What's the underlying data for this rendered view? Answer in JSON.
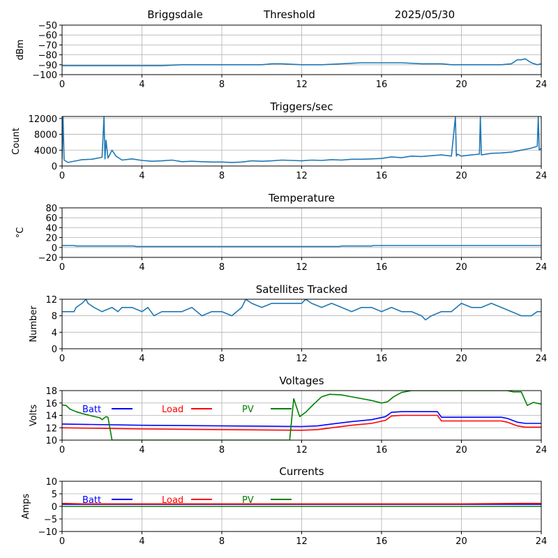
{
  "header": {
    "station": "Briggsdale",
    "mode": "Threshold",
    "date": "2025/05/30"
  },
  "chart_data": [
    {
      "id": "signal",
      "type": "line",
      "title": "",
      "xlabel": "",
      "ylabel": "dBm",
      "xlim": [
        0,
        24
      ],
      "ylim": [
        -100,
        -50
      ],
      "xticks": [
        0,
        4,
        8,
        12,
        16,
        20,
        24
      ],
      "yticks": [
        -100,
        -90,
        -80,
        -70,
        -60,
        -50
      ],
      "grid": true,
      "series": [
        {
          "color": "#1f77b4",
          "x": [
            0,
            1,
            2,
            3,
            4,
            5,
            6,
            7,
            8,
            9,
            10,
            10.5,
            11,
            12,
            13,
            14,
            15,
            16,
            17,
            18,
            19,
            19.5,
            20,
            21,
            22,
            22.5,
            22.8,
            23.0,
            23.2,
            23.5,
            23.8,
            24
          ],
          "y": [
            -91,
            -91,
            -91,
            -91,
            -91,
            -91,
            -90,
            -90,
            -90,
            -90,
            -90,
            -89,
            -89,
            -90,
            -90,
            -89,
            -88,
            -88,
            -88,
            -89,
            -89,
            -90,
            -90,
            -90,
            -90,
            -89,
            -85,
            -85,
            -84,
            -88,
            -90,
            -89
          ]
        }
      ]
    },
    {
      "id": "triggers",
      "type": "line",
      "title": "Triggers/sec",
      "xlabel": "",
      "ylabel": "Count",
      "xlim": [
        0,
        24
      ],
      "ylim": [
        0,
        12500
      ],
      "xticks": [
        0,
        4,
        8,
        12,
        16,
        20,
        24
      ],
      "yticks": [
        0,
        4000,
        8000,
        12000
      ],
      "grid": true,
      "series": [
        {
          "color": "#1f77b4",
          "x": [
            0,
            0.05,
            0.1,
            0.3,
            1,
            1.5,
            2,
            2.1,
            2.15,
            2.2,
            2.3,
            2.5,
            2.7,
            3,
            3.5,
            4,
            4.5,
            5,
            5.5,
            6,
            6.5,
            7,
            7.5,
            8,
            8.5,
            9,
            9.5,
            10,
            10.5,
            11,
            11.5,
            12,
            12.5,
            13,
            13.5,
            14,
            14.5,
            15,
            15.5,
            16,
            16.5,
            17,
            17.5,
            18,
            18.5,
            19,
            19.5,
            19.7,
            19.75,
            19.8,
            20,
            20.5,
            20.9,
            20.95,
            21,
            21.5,
            22,
            22.5,
            23,
            23.5,
            23.8,
            23.85,
            23.9,
            24
          ],
          "y": [
            1800,
            12400,
            1500,
            900,
            1600,
            1700,
            2200,
            12400,
            1800,
            6500,
            2000,
            4000,
            2500,
            1500,
            1800,
            1400,
            1200,
            1300,
            1500,
            1100,
            1200,
            1100,
            1000,
            1000,
            900,
            1000,
            1300,
            1200,
            1300,
            1500,
            1400,
            1300,
            1500,
            1400,
            1600,
            1500,
            1700,
            1700,
            1800,
            1900,
            2300,
            2100,
            2500,
            2400,
            2600,
            2800,
            2500,
            12400,
            2500,
            3000,
            2500,
            2800,
            3000,
            12400,
            2800,
            3200,
            3300,
            3500,
            4000,
            4500,
            5000,
            12400,
            4000,
            4500
          ]
        }
      ]
    },
    {
      "id": "temperature",
      "type": "line",
      "title": "Temperature",
      "xlabel": "",
      "ylabel": "°C",
      "xlim": [
        0,
        24
      ],
      "ylim": [
        -20,
        80
      ],
      "xticks": [
        0,
        4,
        8,
        12,
        16,
        20,
        24
      ],
      "yticks": [
        -20,
        0,
        20,
        40,
        60,
        80
      ],
      "grid": true,
      "series": [
        {
          "color": "#1f77b4",
          "x": [
            0,
            0.6,
            0.7,
            3.6,
            3.7,
            13.9,
            14.0,
            15.5,
            15.6,
            24
          ],
          "y": [
            4,
            4,
            3,
            3,
            2,
            2,
            3,
            3,
            4,
            4
          ]
        }
      ]
    },
    {
      "id": "satellites",
      "type": "line",
      "title": "Satellites Tracked",
      "xlabel": "",
      "ylabel": "Number",
      "xlim": [
        0,
        24
      ],
      "ylim": [
        0,
        12
      ],
      "xticks": [
        0,
        4,
        8,
        12,
        16,
        20,
        24
      ],
      "yticks": [
        0,
        4,
        8,
        12
      ],
      "grid": true,
      "series": [
        {
          "color": "#1f77b4",
          "x": [
            0,
            0.6,
            0.7,
            1.0,
            1.2,
            1.3,
            1.6,
            2.0,
            2.5,
            2.8,
            3.0,
            3.5,
            4.0,
            4.3,
            4.6,
            5.0,
            5.5,
            6.0,
            6.5,
            7.0,
            7.5,
            8.0,
            8.5,
            9.0,
            9.2,
            9.5,
            10.0,
            10.5,
            11.0,
            11.5,
            12.0,
            12.2,
            12.5,
            13.0,
            13.5,
            14.0,
            14.5,
            15.0,
            15.5,
            16.0,
            16.5,
            17.0,
            17.5,
            18.0,
            18.2,
            18.5,
            19.0,
            19.5,
            20.0,
            20.5,
            21.0,
            21.5,
            22.0,
            22.5,
            23.0,
            23.5,
            23.8,
            24
          ],
          "y": [
            9,
            9,
            10,
            11,
            12,
            11,
            10,
            9,
            10,
            9,
            10,
            10,
            9,
            10,
            8,
            9,
            9,
            9,
            10,
            8,
            9,
            9,
            8,
            10,
            12,
            11,
            10,
            11,
            11,
            11,
            11,
            12,
            11,
            10,
            11,
            10,
            9,
            10,
            10,
            9,
            10,
            9,
            9,
            8,
            7,
            8,
            9,
            9,
            11,
            10,
            10,
            11,
            10,
            9,
            8,
            8,
            9,
            9
          ]
        }
      ]
    },
    {
      "id": "voltages",
      "type": "line",
      "title": "Voltages",
      "xlabel": "",
      "ylabel": "Volts",
      "xlim": [
        0,
        24
      ],
      "ylim": [
        10,
        18
      ],
      "xticks": [
        0,
        4,
        8,
        12,
        16,
        20,
        24
      ],
      "yticks": [
        10,
        12,
        14,
        16,
        18
      ],
      "grid": true,
      "legend": "top-left",
      "series": [
        {
          "name": "Batt",
          "color": "#0000ff",
          "x": [
            0,
            4,
            8,
            12,
            12.8,
            13.5,
            14.5,
            15.5,
            16.2,
            16.5,
            17,
            18,
            18.8,
            19.0,
            20,
            22.0,
            22.3,
            22.8,
            23.2,
            24
          ],
          "y": [
            12.6,
            12.4,
            12.3,
            12.2,
            12.3,
            12.6,
            13.0,
            13.3,
            13.8,
            14.5,
            14.6,
            14.6,
            14.6,
            13.7,
            13.7,
            13.7,
            13.5,
            12.9,
            12.7,
            12.7
          ]
        },
        {
          "name": "Load",
          "color": "#ff0000",
          "x": [
            0,
            4,
            8,
            12,
            12.8,
            13.5,
            14.5,
            15.5,
            16.2,
            16.5,
            17,
            18,
            18.8,
            19.0,
            20,
            22.0,
            22.3,
            22.8,
            23.2,
            24
          ],
          "y": [
            12.0,
            11.8,
            11.7,
            11.6,
            11.7,
            12.0,
            12.4,
            12.7,
            13.2,
            13.9,
            14.0,
            14.0,
            14.0,
            13.1,
            13.1,
            13.1,
            12.9,
            12.3,
            12.1,
            12.1
          ],
          "label_color": "#ff0000"
        },
        {
          "name": "PV",
          "color": "#008000",
          "x": [
            0,
            0.2,
            0.4,
            0.7,
            1.0,
            1.5,
            1.9,
            2.0,
            2.2,
            2.3,
            2.5,
            11.4,
            11.6,
            11.9,
            12.2,
            12.6,
            13.0,
            13.4,
            14.0,
            14.5,
            15.0,
            15.5,
            16.0,
            16.3,
            16.6,
            17.0,
            17.5,
            18.0,
            18.5,
            22.3,
            22.6,
            23.0,
            23.3,
            23.6,
            24
          ],
          "y": [
            15.7,
            15.6,
            15.0,
            14.6,
            14.3,
            13.9,
            13.6,
            13.3,
            13.8,
            13.7,
            10.0,
            10.0,
            16.7,
            13.8,
            14.5,
            15.8,
            17.0,
            17.4,
            17.3,
            17.0,
            16.7,
            16.4,
            16.0,
            16.2,
            17.0,
            17.7,
            18.0,
            18.0,
            18.0,
            18.0,
            17.8,
            17.8,
            15.6,
            16.1,
            15.8
          ]
        }
      ]
    },
    {
      "id": "currents",
      "type": "line",
      "title": "Currents",
      "xlabel": "",
      "ylabel": "Amps",
      "xlim": [
        0,
        24
      ],
      "ylim": [
        -10,
        10
      ],
      "xticks": [
        0,
        4,
        8,
        12,
        16,
        20,
        24
      ],
      "yticks": [
        -10,
        -5,
        0,
        5,
        10
      ],
      "grid": true,
      "legend": "top-left",
      "series": [
        {
          "name": "Batt",
          "color": "#0000ff",
          "x": [
            0,
            24
          ],
          "y": [
            0.8,
            0.8
          ]
        },
        {
          "name": "Load",
          "color": "#ff0000",
          "x": [
            0,
            1,
            4,
            8,
            12,
            16,
            20,
            23,
            24
          ],
          "y": [
            1.2,
            1.0,
            1.0,
            1.0,
            1.0,
            1.0,
            1.0,
            1.2,
            1.2
          ]
        },
        {
          "name": "PV",
          "color": "#008000",
          "x": [
            0,
            24
          ],
          "y": [
            0,
            0
          ]
        }
      ]
    }
  ]
}
